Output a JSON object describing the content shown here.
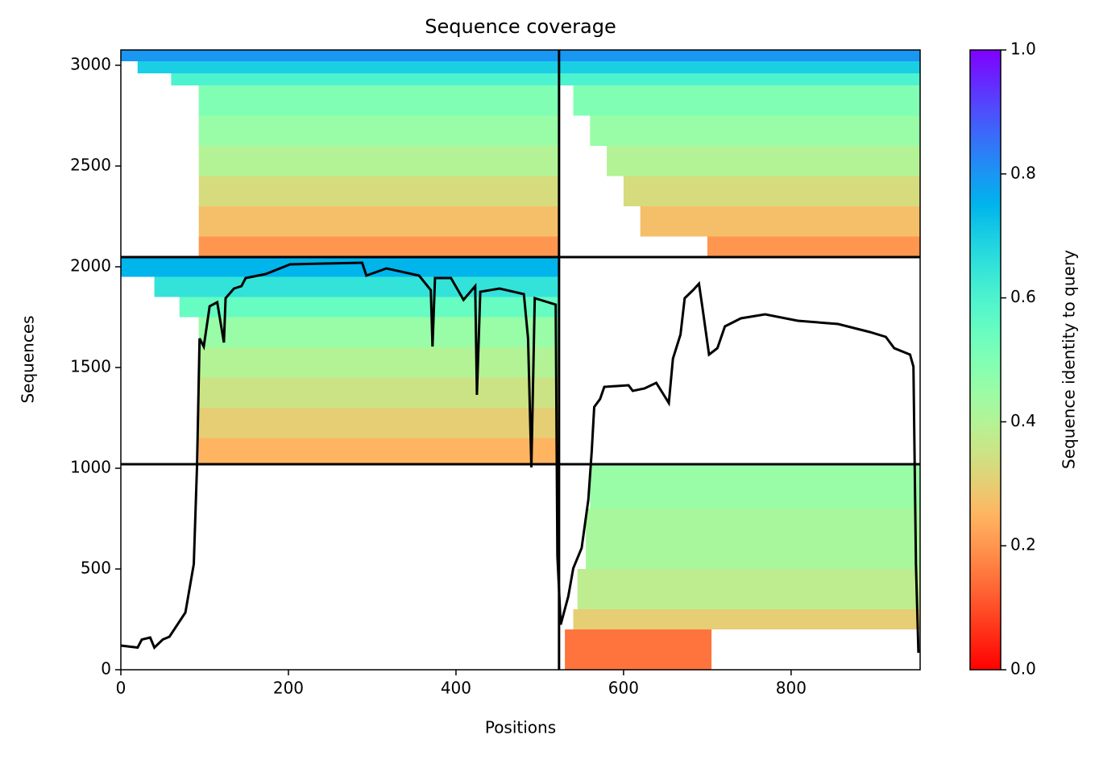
{
  "chart_data": {
    "type": "coverage",
    "title": "Sequence coverage",
    "x_label": "Positions",
    "y_label": "Sequences",
    "colorbar_label": "Sequence identity to query",
    "xlim": [
      0,
      954
    ],
    "ylim": [
      0,
      3076
    ],
    "xticks": [
      0,
      200,
      400,
      600,
      800
    ],
    "yticks": [
      0,
      500,
      1000,
      1500,
      2000,
      2500,
      3000
    ],
    "clim": [
      0,
      1
    ],
    "cticks": [
      {
        "value": 0,
        "label": "0.0"
      },
      {
        "value": 0.2,
        "label": "0.2"
      },
      {
        "value": 0.4,
        "label": "0.4"
      },
      {
        "value": 0.6,
        "label": "0.6"
      },
      {
        "value": 0.8,
        "label": "0.8"
      },
      {
        "value": 1,
        "label": "1.0"
      }
    ],
    "colormap": "rainbow_r",
    "x_dividers": [
      523
    ],
    "y_dividers": [
      1020,
      2048
    ],
    "blocks": [
      [
        93,
        523,
        2048,
        2150,
        0.2
      ],
      [
        93,
        523,
        2150,
        2300,
        0.27
      ],
      [
        93,
        523,
        2300,
        2450,
        0.33
      ],
      [
        93,
        523,
        2450,
        2600,
        0.4
      ],
      [
        93,
        523,
        2600,
        2750,
        0.45
      ],
      [
        93,
        523,
        2750,
        2900,
        0.5
      ],
      [
        60,
        523,
        2900,
        2960,
        0.6
      ],
      [
        20,
        523,
        2960,
        3020,
        0.7
      ],
      [
        0,
        523,
        3020,
        3076,
        0.8
      ],
      [
        700,
        954,
        2048,
        2150,
        0.2
      ],
      [
        620,
        954,
        2150,
        2300,
        0.27
      ],
      [
        600,
        954,
        2300,
        2450,
        0.33
      ],
      [
        580,
        954,
        2450,
        2600,
        0.4
      ],
      [
        560,
        954,
        2600,
        2750,
        0.45
      ],
      [
        540,
        954,
        2750,
        2900,
        0.5
      ],
      [
        523,
        954,
        2900,
        2960,
        0.6
      ],
      [
        523,
        954,
        2960,
        3020,
        0.7
      ],
      [
        523,
        954,
        3020,
        3076,
        0.8
      ],
      [
        93,
        523,
        1020,
        1150,
        0.25
      ],
      [
        93,
        523,
        1150,
        1300,
        0.3
      ],
      [
        93,
        523,
        1300,
        1450,
        0.35
      ],
      [
        93,
        523,
        1450,
        1600,
        0.4
      ],
      [
        93,
        523,
        1600,
        1750,
        0.45
      ],
      [
        70,
        523,
        1750,
        1850,
        0.55
      ],
      [
        40,
        523,
        1850,
        1950,
        0.65
      ],
      [
        0,
        523,
        1950,
        2048,
        0.75
      ],
      [
        530,
        705,
        0,
        200,
        0.15
      ],
      [
        540,
        954,
        200,
        300,
        0.3
      ],
      [
        545,
        954,
        300,
        500,
        0.38
      ],
      [
        555,
        954,
        500,
        800,
        0.42
      ],
      [
        560,
        954,
        800,
        1020,
        0.45
      ]
    ],
    "coverage": {
      "color": "#000000",
      "x": [
        0,
        10,
        20,
        25,
        35,
        40,
        50,
        58,
        77,
        87,
        91,
        94,
        99,
        106,
        115,
        123,
        125,
        135,
        144,
        149,
        173,
        202,
        288,
        293,
        317,
        356,
        370,
        372,
        375,
        394,
        409,
        423,
        425,
        429,
        452,
        481,
        486,
        490,
        494,
        519,
        521,
        525,
        534,
        540,
        550,
        558,
        562,
        565,
        572,
        577,
        606,
        611,
        625,
        639,
        654,
        659,
        668,
        673,
        683,
        690,
        694,
        702,
        712,
        721,
        740,
        769,
        808,
        856,
        894,
        913,
        923,
        942,
        946,
        949,
        952
      ],
      "values": [
        120,
        115,
        110,
        150,
        160,
        110,
        150,
        164,
        284,
        524,
        1020,
        1644,
        1604,
        1804,
        1824,
        1624,
        1844,
        1892,
        1904,
        1944,
        1964,
        2012,
        2020,
        1956,
        1992,
        1956,
        1884,
        1604,
        1944,
        1944,
        1836,
        1904,
        1364,
        1876,
        1892,
        1864,
        1644,
        1004,
        1844,
        1812,
        564,
        224,
        364,
        504,
        604,
        844,
        1084,
        1304,
        1344,
        1404,
        1412,
        1384,
        1396,
        1424,
        1324,
        1544,
        1664,
        1844,
        1884,
        1916,
        1804,
        1564,
        1596,
        1704,
        1744,
        1764,
        1732,
        1716,
        1676,
        1652,
        1596,
        1564,
        1504,
        524,
        84
      ]
    }
  }
}
